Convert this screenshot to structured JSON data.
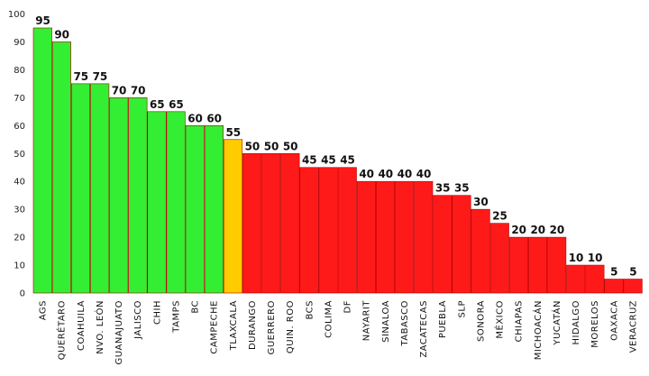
{
  "chart_data": {
    "type": "bar",
    "title": "",
    "xlabel": "",
    "ylabel": "",
    "ylim": [
      0,
      100
    ],
    "yticks": [
      0,
      10,
      20,
      30,
      40,
      50,
      60,
      70,
      80,
      90,
      100
    ],
    "grid": false,
    "legend": "none",
    "data_labels": true,
    "categories": [
      "AGS",
      "QUERÉTARO",
      "COAHUILA",
      "NVO. LEÓN",
      "GUANAJUATO",
      "JALISCO",
      "CHIH",
      "TAMPS",
      "BC",
      "CAMPECHE",
      "TLAXCALA",
      "DURANGO",
      "GUERRERO",
      "QUIN. ROO",
      "BCS",
      "COLIMA",
      "DF",
      "NAYARIT",
      "SINALOA",
      "TABASCO",
      "ZACATECAS",
      "PUEBLA",
      "SLP",
      "SONORA",
      "MÉXICO",
      "CHIAPAS",
      "MICHOACÁN",
      "YUCATÁN",
      "HIDALGO",
      "MORELOS",
      "OAXACA",
      "VERACRUZ"
    ],
    "values": [
      95,
      90,
      75,
      75,
      70,
      70,
      65,
      65,
      60,
      60,
      55,
      50,
      50,
      50,
      45,
      45,
      45,
      40,
      40,
      40,
      40,
      35,
      35,
      30,
      25,
      20,
      20,
      20,
      10,
      10,
      5,
      5
    ],
    "bar_colors": [
      "#33ee33",
      "#33ee33",
      "#33ee33",
      "#33ee33",
      "#33ee33",
      "#33ee33",
      "#33ee33",
      "#33ee33",
      "#33ee33",
      "#33ee33",
      "#ffcc00",
      "#ff1a1a",
      "#ff1a1a",
      "#ff1a1a",
      "#ff1a1a",
      "#ff1a1a",
      "#ff1a1a",
      "#ff1a1a",
      "#ff1a1a",
      "#ff1a1a",
      "#ff1a1a",
      "#ff1a1a",
      "#ff1a1a",
      "#ff1a1a",
      "#ff1a1a",
      "#ff1a1a",
      "#ff1a1a",
      "#ff1a1a",
      "#ff1a1a",
      "#ff1a1a",
      "#ff1a1a",
      "#ff1a1a"
    ],
    "bar_edge_color": "#b30000"
  }
}
